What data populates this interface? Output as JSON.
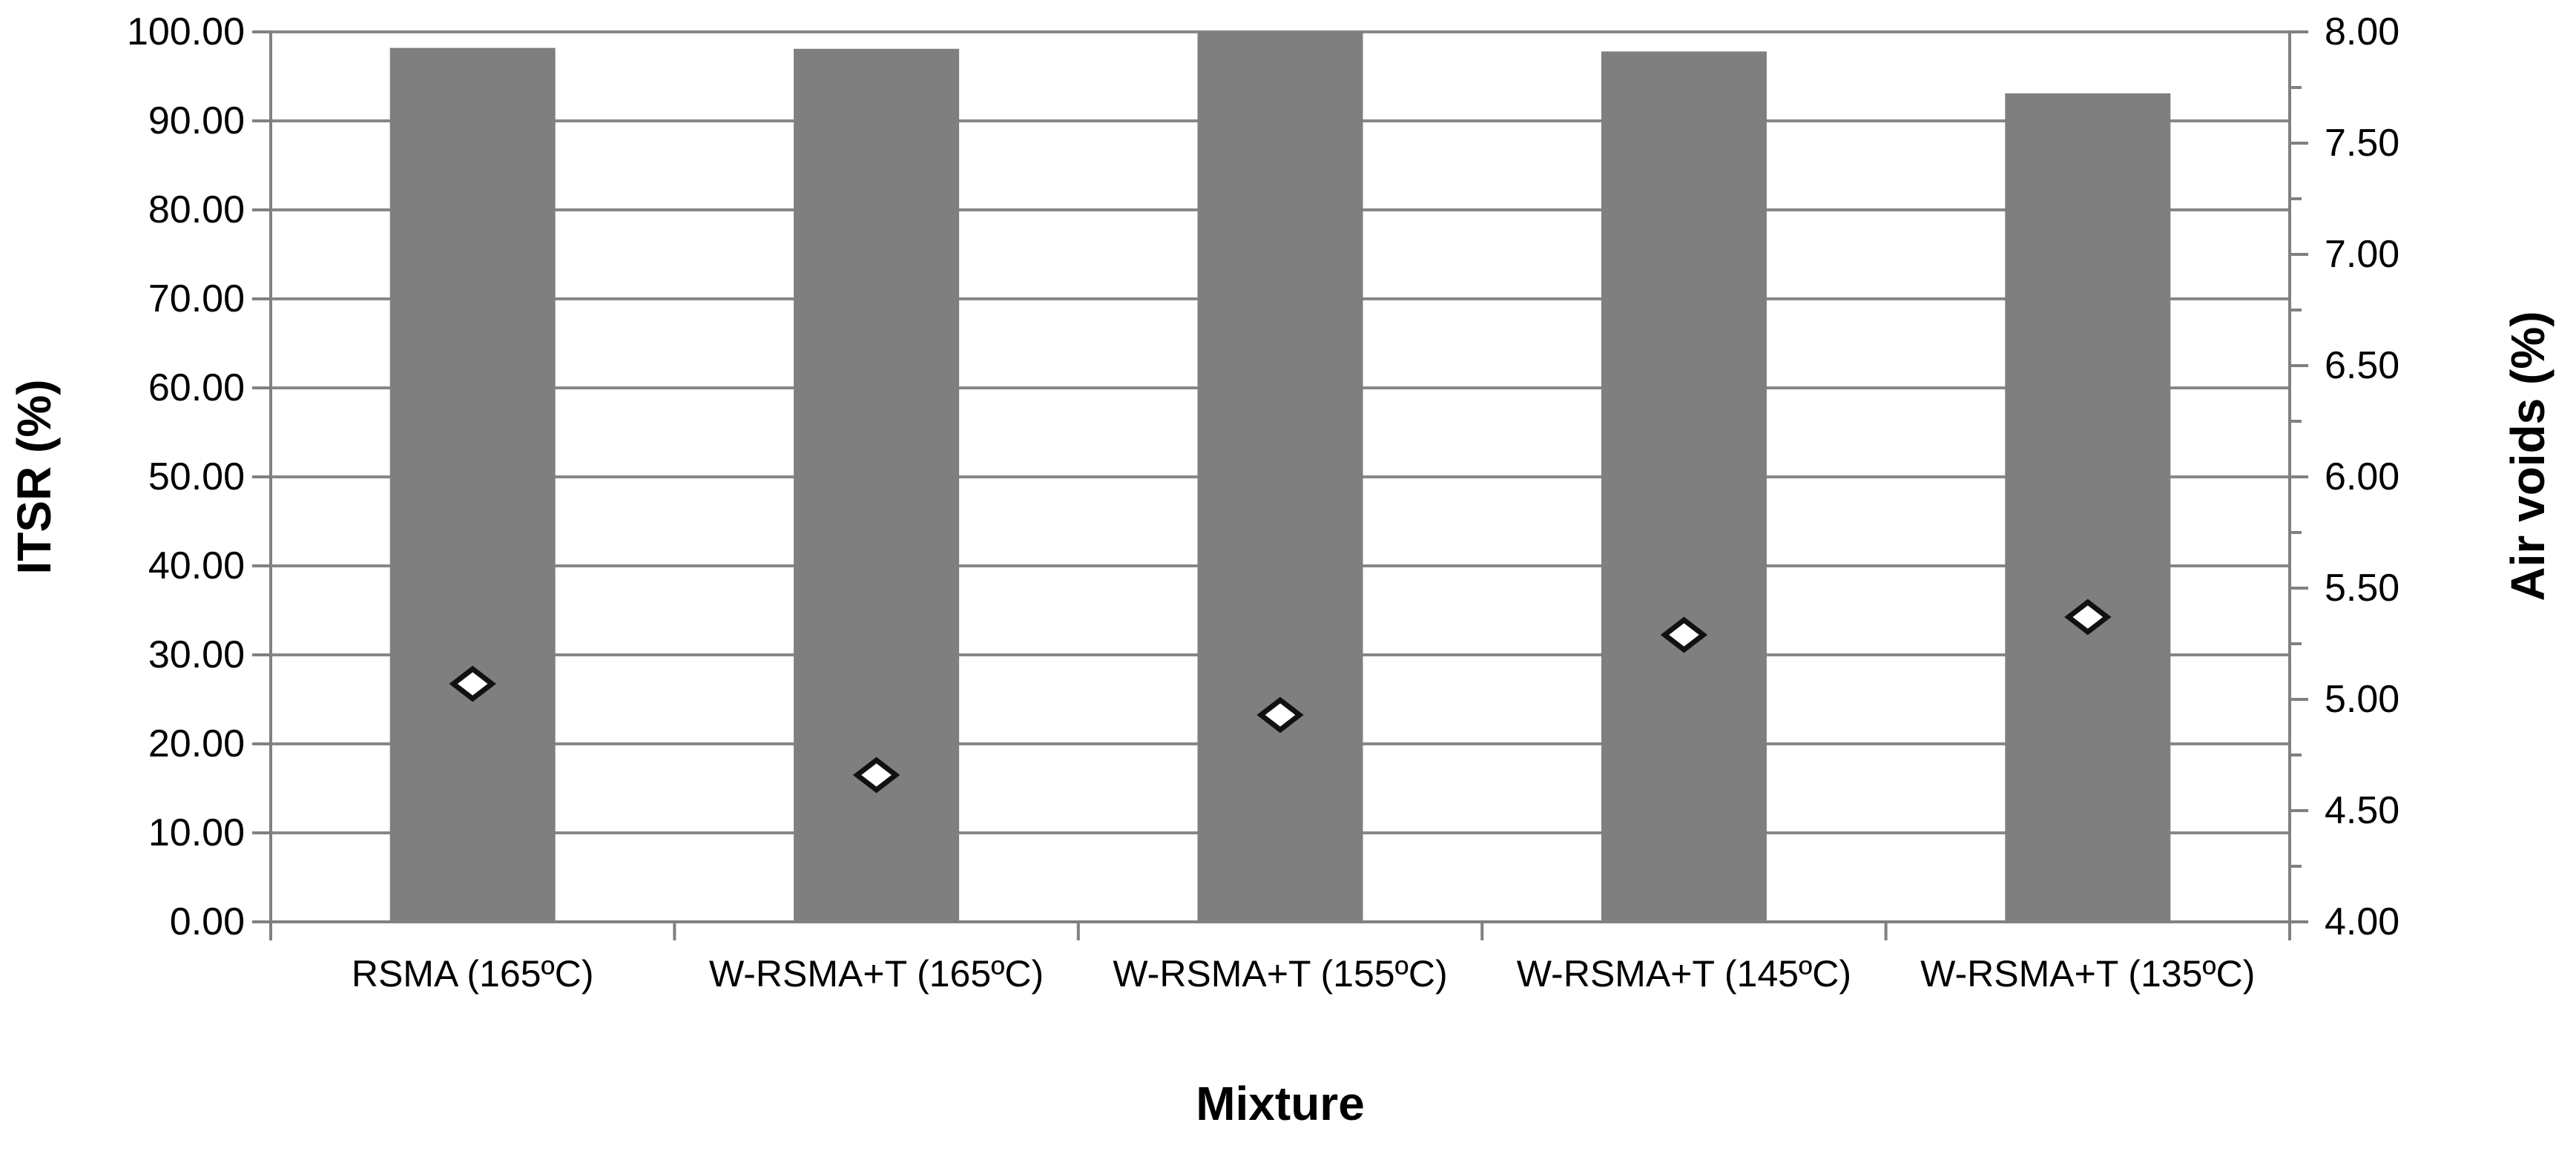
{
  "chart_data": {
    "type": "bar",
    "title": "",
    "categories": [
      "RSMA (165ºC)",
      "W-RSMA+T (165ºC)",
      "W-RSMA+T (155ºC)",
      "W-RSMA+T (145ºC)",
      "W-RSMA+T (135ºC)"
    ],
    "series": [
      {
        "name": "ITSR",
        "render": "bar",
        "axis": "left",
        "values": [
          98.2,
          98.1,
          100.0,
          97.8,
          93.1
        ],
        "color": "#7f7f7f"
      },
      {
        "name": "Air voids",
        "render": "scatter",
        "axis": "right",
        "values": [
          5.07,
          4.66,
          4.93,
          5.29,
          5.37
        ],
        "marker": "diamond",
        "marker_fill": "#ffffff",
        "marker_stroke": "#111111"
      }
    ],
    "left_axis": {
      "label": "ITSR (%)",
      "min": 0,
      "max": 100,
      "tick_labels": [
        "100.00",
        "90.00",
        "80.00",
        "70.00",
        "60.00",
        "50.00",
        "40.00",
        "30.00",
        "20.00",
        "10.00",
        "0.00"
      ]
    },
    "right_axis": {
      "label": "Air voids (%)",
      "min": 4,
      "max": 8,
      "minor_tick_step": 0.25,
      "tick_labels": [
        "8.00",
        "7.50",
        "7.00",
        "6.50",
        "6.00",
        "5.50",
        "5.00",
        "4.50",
        "4.00"
      ]
    },
    "x_axis": {
      "label": "Mixture"
    },
    "grid": {
      "horizontal": true,
      "vertical": false
    },
    "legend": "none",
    "colors": {
      "background": "#ffffff",
      "gridline": "#878787",
      "axis_line": "#808080",
      "bar_fill": "#7f7f7f",
      "text": "#000000"
    }
  }
}
